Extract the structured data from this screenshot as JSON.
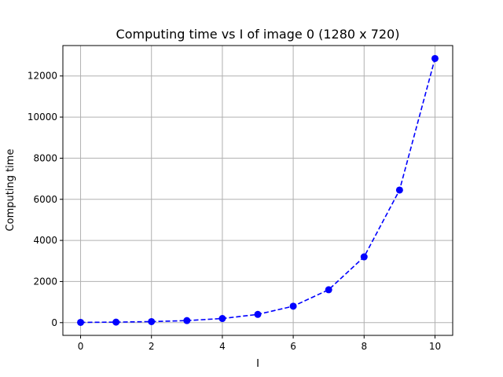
{
  "chart_data": {
    "type": "line",
    "title": "Computing time vs I of image 0 (1280 x 720)",
    "xlabel": "I",
    "ylabel": "Computing time",
    "x": [
      0,
      1,
      2,
      3,
      4,
      5,
      6,
      7,
      8,
      9,
      10
    ],
    "series": [
      {
        "values": [
          12,
          25,
          50,
          100,
          200,
          400,
          800,
          1600,
          3200,
          6450,
          12850
        ]
      }
    ],
    "xlim": [
      -0.5,
      10.5
    ],
    "ylim": [
      -620,
      13480
    ],
    "xticks": [
      0,
      2,
      4,
      6,
      8,
      10
    ],
    "yticks": [
      0,
      2000,
      4000,
      6000,
      8000,
      10000,
      12000
    ],
    "grid": true,
    "line_style": "dashed",
    "marker": "circle",
    "color": "#0000ff",
    "grid_color": "#b0b0b0"
  }
}
